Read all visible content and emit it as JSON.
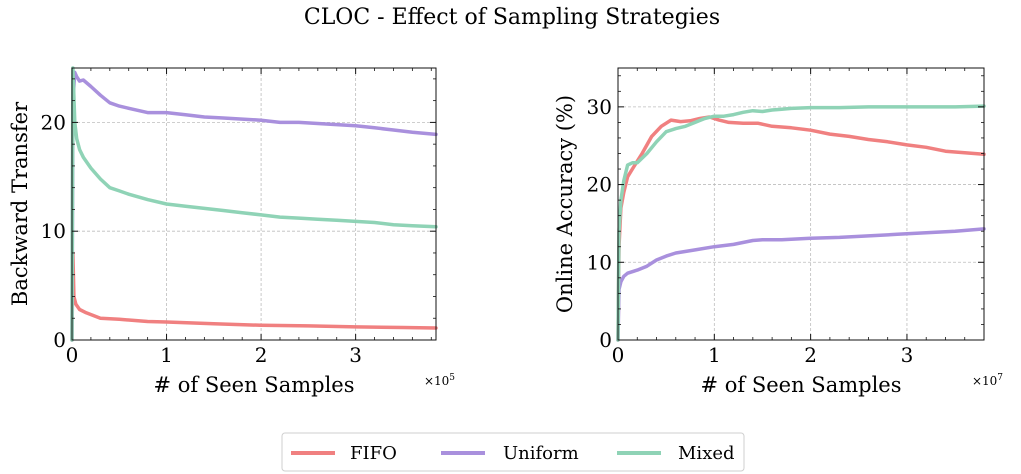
{
  "figure": {
    "title": "CLOC - Effect of Sampling Strategies"
  },
  "colors": {
    "FIFO": "#f08080",
    "Uniform": "#a990dd",
    "Mixed": "#8fd3b6"
  },
  "legend": {
    "placement": "bottom-center",
    "items": [
      "FIFO",
      "Uniform",
      "Mixed"
    ]
  },
  "chart_data": [
    {
      "type": "line",
      "xlabel": "# of Seen Samples",
      "ylabel": "Backward Transfer",
      "x_scale_label": "×10^5",
      "x_multiplier": 100000,
      "xlim": [
        0,
        3.85
      ],
      "ylim": [
        0,
        25
      ],
      "xticks": [
        0,
        1,
        2,
        3
      ],
      "yticks": [
        0,
        10,
        20
      ],
      "xtick_labels": [
        "0",
        "1",
        "2",
        "3"
      ],
      "ytick_labels": [
        "0",
        "10",
        "20"
      ],
      "grid": true,
      "series": [
        {
          "name": "FIFO",
          "x": [
            0,
            0.01,
            0.02,
            0.04,
            0.08,
            0.15,
            0.3,
            0.5,
            0.8,
            1.0,
            1.5,
            2.0,
            2.5,
            3.0,
            3.5,
            3.85
          ],
          "y": [
            0,
            8,
            4,
            3.3,
            2.8,
            2.5,
            2.0,
            1.9,
            1.7,
            1.65,
            1.5,
            1.35,
            1.3,
            1.2,
            1.15,
            1.1
          ]
        },
        {
          "name": "Uniform",
          "x": [
            0,
            0.01,
            0.03,
            0.05,
            0.08,
            0.12,
            0.2,
            0.3,
            0.4,
            0.5,
            0.6,
            0.8,
            1.0,
            1.2,
            1.4,
            1.6,
            1.8,
            2.0,
            2.2,
            2.4,
            2.6,
            2.8,
            3.0,
            3.2,
            3.4,
            3.6,
            3.85
          ],
          "y": [
            0,
            22,
            24.6,
            24.2,
            23.8,
            23.9,
            23.3,
            22.5,
            21.8,
            21.5,
            21.3,
            20.9,
            20.9,
            20.7,
            20.5,
            20.4,
            20.3,
            20.2,
            20.0,
            20.0,
            19.9,
            19.8,
            19.7,
            19.5,
            19.3,
            19.1,
            18.9
          ]
        },
        {
          "name": "Mixed",
          "x": [
            0,
            0.01,
            0.03,
            0.05,
            0.08,
            0.12,
            0.2,
            0.3,
            0.4,
            0.5,
            0.6,
            0.8,
            1.0,
            1.2,
            1.4,
            1.6,
            1.8,
            2.0,
            2.2,
            2.4,
            2.6,
            2.8,
            3.0,
            3.2,
            3.4,
            3.6,
            3.85
          ],
          "y": [
            0,
            25,
            20,
            18.5,
            17.5,
            16.8,
            15.8,
            14.8,
            14.0,
            13.7,
            13.4,
            12.9,
            12.5,
            12.3,
            12.1,
            11.9,
            11.7,
            11.5,
            11.3,
            11.2,
            11.1,
            11.0,
            10.9,
            10.8,
            10.6,
            10.5,
            10.4
          ]
        }
      ]
    },
    {
      "type": "line",
      "xlabel": "# of Seen Samples",
      "ylabel": "Online Accuracy (%)",
      "x_scale_label": "×10^7",
      "x_multiplier": 10000000,
      "xlim": [
        0,
        3.8
      ],
      "ylim": [
        0,
        35
      ],
      "xticks": [
        0,
        1,
        2,
        3
      ],
      "yticks": [
        0,
        10,
        20,
        30
      ],
      "xtick_labels": [
        "0",
        "1",
        "2",
        "3"
      ],
      "ytick_labels": [
        "0",
        "10",
        "20",
        "30"
      ],
      "grid": true,
      "series": [
        {
          "name": "FIFO",
          "x": [
            0,
            0.01,
            0.03,
            0.06,
            0.1,
            0.15,
            0.25,
            0.35,
            0.45,
            0.55,
            0.65,
            0.75,
            0.85,
            0.95,
            1.05,
            1.15,
            1.3,
            1.45,
            1.6,
            1.8,
            2.0,
            2.2,
            2.4,
            2.6,
            2.8,
            3.0,
            3.2,
            3.4,
            3.6,
            3.8
          ],
          "y": [
            0,
            12,
            17,
            19,
            21,
            22,
            24,
            26.2,
            27.5,
            28.3,
            28.1,
            28.2,
            28.5,
            28.7,
            28.3,
            28.0,
            27.9,
            27.9,
            27.5,
            27.3,
            27.0,
            26.5,
            26.2,
            25.8,
            25.5,
            25.1,
            24.8,
            24.3,
            24.1,
            23.9
          ]
        },
        {
          "name": "Uniform",
          "x": [
            0,
            0.01,
            0.03,
            0.06,
            0.1,
            0.2,
            0.3,
            0.4,
            0.5,
            0.6,
            0.8,
            1.0,
            1.2,
            1.4,
            1.5,
            1.7,
            2.0,
            2.3,
            2.6,
            2.9,
            3.2,
            3.5,
            3.8
          ],
          "y": [
            0,
            6.5,
            7.5,
            8.2,
            8.6,
            9.0,
            9.5,
            10.3,
            10.8,
            11.2,
            11.6,
            12.0,
            12.3,
            12.8,
            12.9,
            12.9,
            13.1,
            13.2,
            13.4,
            13.6,
            13.8,
            14.0,
            14.3
          ]
        },
        {
          "name": "Mixed",
          "x": [
            0,
            0.01,
            0.03,
            0.06,
            0.1,
            0.15,
            0.2,
            0.3,
            0.4,
            0.5,
            0.6,
            0.7,
            0.8,
            0.9,
            1.0,
            1.1,
            1.2,
            1.3,
            1.4,
            1.5,
            1.6,
            1.7,
            1.8,
            2.0,
            2.3,
            2.6,
            2.9,
            3.2,
            3.5,
            3.8
          ],
          "y": [
            0,
            14,
            18,
            20.5,
            22.5,
            22.8,
            22.8,
            24.0,
            25.5,
            26.8,
            27.2,
            27.5,
            28.0,
            28.5,
            28.8,
            28.8,
            29.0,
            29.3,
            29.5,
            29.4,
            29.6,
            29.7,
            29.8,
            29.9,
            29.9,
            30.0,
            30.0,
            30.0,
            30.0,
            30.1
          ]
        }
      ]
    }
  ]
}
